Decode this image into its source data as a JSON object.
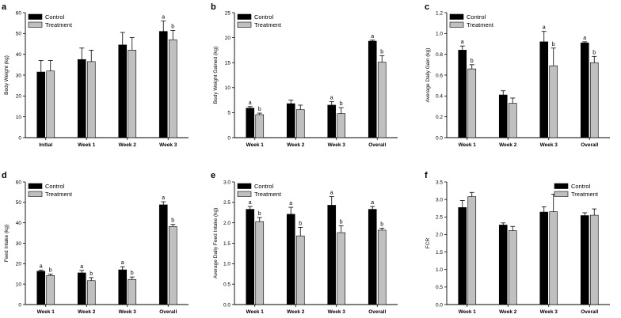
{
  "figure": {
    "legend_labels": [
      "Control",
      "Treatment"
    ],
    "colors": {
      "control": "#000000",
      "treatment": "#c0c0c0"
    }
  },
  "chart_data": [
    {
      "panel": "a",
      "type": "bar",
      "title": "",
      "ylabel": "Body Weight (kg)",
      "xlabel": "",
      "categories": [
        "Initial",
        "Week 1",
        "Week 2",
        "Week 3"
      ],
      "ylim": [
        0,
        60
      ],
      "yticks": [
        0,
        10,
        20,
        30,
        40,
        50,
        60
      ],
      "ytick_labels": [
        "0",
        "10",
        "20",
        "30",
        "40",
        "50",
        "60"
      ],
      "legend_position": "top-left",
      "series": [
        {
          "name": "Control",
          "values": [
            31.5,
            37.5,
            44.5,
            51
          ],
          "errors": [
            5.5,
            5.5,
            6,
            5
          ],
          "labels": [
            "",
            "",
            "",
            "a"
          ]
        },
        {
          "name": "Treatment",
          "values": [
            32,
            36.5,
            42,
            47
          ],
          "errors": [
            5,
            5.5,
            6,
            4.5
          ],
          "labels": [
            "",
            "",
            "",
            "b"
          ]
        }
      ]
    },
    {
      "panel": "b",
      "type": "bar",
      "title": "",
      "ylabel": "Body Weight Gained (kg)",
      "xlabel": "",
      "categories": [
        "Week 1",
        "Week 2",
        "Week 3",
        "Overall"
      ],
      "ylim": [
        0,
        25
      ],
      "yticks": [
        0,
        5,
        10,
        15,
        20,
        25
      ],
      "ytick_labels": [
        "0",
        "5",
        "10",
        "15",
        "20",
        "25"
      ],
      "legend_position": "top-left",
      "series": [
        {
          "name": "Control",
          "values": [
            5.9,
            6.8,
            6.5,
            19.3
          ],
          "errors": [
            0.3,
            0.7,
            0.7,
            0.2
          ],
          "labels": [
            "a",
            "",
            "a",
            "a"
          ]
        },
        {
          "name": "Treatment",
          "values": [
            4.6,
            5.6,
            4.8,
            15.1
          ],
          "errors": [
            0.3,
            0.9,
            1.2,
            1.3
          ],
          "labels": [
            "b",
            "",
            "b",
            "b"
          ]
        }
      ]
    },
    {
      "panel": "c",
      "type": "bar",
      "title": "",
      "ylabel": "Average Daily Gain (kg)",
      "xlabel": "",
      "categories": [
        "Week 1",
        "Week 2",
        "Week 3",
        "Overall"
      ],
      "ylim": [
        0,
        1.2
      ],
      "yticks": [
        0,
        0.2,
        0.4,
        0.6,
        0.8,
        1.0,
        1.2
      ],
      "ytick_labels": [
        "0.0",
        "0.2",
        "0.4",
        "0.6",
        "0.8",
        "1.0",
        "1.2"
      ],
      "legend_position": "top-left",
      "series": [
        {
          "name": "Control",
          "values": [
            0.84,
            0.41,
            0.92,
            0.91
          ],
          "errors": [
            0.04,
            0.04,
            0.1,
            0.01
          ],
          "labels": [
            "a",
            "",
            "a",
            "a"
          ]
        },
        {
          "name": "Treatment",
          "values": [
            0.66,
            0.33,
            0.69,
            0.72
          ],
          "errors": [
            0.04,
            0.05,
            0.17,
            0.06
          ],
          "labels": [
            "b",
            "",
            "b",
            "b"
          ]
        }
      ]
    },
    {
      "panel": "d",
      "type": "bar",
      "title": "",
      "ylabel": "Feed Intake (kg)",
      "xlabel": "",
      "categories": [
        "Week 1",
        "Week 2",
        "Week 3",
        "Overall"
      ],
      "ylim": [
        0,
        60
      ],
      "yticks": [
        0,
        10,
        20,
        30,
        40,
        50,
        60
      ],
      "ytick_labels": [
        "0",
        "10",
        "20",
        "30",
        "40",
        "50",
        "60"
      ],
      "legend_position": "top-left",
      "series": [
        {
          "name": "Control",
          "values": [
            16.3,
            15.5,
            17,
            48.8
          ],
          "errors": [
            0.5,
            1.2,
            1.5,
            1.5
          ],
          "labels": [
            "a",
            "a",
            "a",
            "a"
          ]
        },
        {
          "name": "Treatment",
          "values": [
            14.2,
            11.7,
            12.3,
            38.2
          ],
          "errors": [
            0.7,
            1.5,
            1.2,
            1.0
          ],
          "labels": [
            "b",
            "b",
            "b",
            "b"
          ]
        }
      ]
    },
    {
      "panel": "e",
      "type": "bar",
      "title": "",
      "ylabel": "Average Daily Feed Intake (kg)",
      "xlabel": "",
      "categories": [
        "Week 1",
        "Week 2",
        "Week 3",
        "Overall"
      ],
      "ylim": [
        0,
        3.0
      ],
      "yticks": [
        0,
        0.5,
        1.0,
        1.5,
        2.0,
        2.5,
        3.0
      ],
      "ytick_labels": [
        "0.0",
        "0.5",
        "1.0",
        "1.5",
        "2.0",
        "2.5",
        "3.0"
      ],
      "legend_position": "top-left",
      "series": [
        {
          "name": "Control",
          "values": [
            2.33,
            2.21,
            2.43,
            2.33
          ],
          "errors": [
            0.07,
            0.17,
            0.21,
            0.07
          ],
          "labels": [
            "a",
            "a",
            "a",
            "a"
          ]
        },
        {
          "name": "Treatment",
          "values": [
            2.03,
            1.68,
            1.76,
            1.82
          ],
          "errors": [
            0.1,
            0.21,
            0.17,
            0.05
          ],
          "labels": [
            "b",
            "b",
            "b",
            "b"
          ]
        }
      ]
    },
    {
      "panel": "f",
      "type": "bar",
      "title": "",
      "ylabel": "FCR",
      "xlabel": "",
      "categories": [
        "Week 1",
        "Week 2",
        "Week 3",
        "Overall"
      ],
      "ylim": [
        0,
        3.5
      ],
      "yticks": [
        0,
        0.5,
        1.0,
        1.5,
        2.0,
        2.5,
        3.0,
        3.5
      ],
      "ytick_labels": [
        "0.0",
        "0.5",
        "1.0",
        "1.5",
        "2.0",
        "2.5",
        "3.0",
        "3.5"
      ],
      "legend_position": "top-right",
      "series": [
        {
          "name": "Control",
          "values": [
            2.77,
            2.27,
            2.64,
            2.54
          ],
          "errors": [
            0.2,
            0.06,
            0.15,
            0.08
          ],
          "labels": [
            "",
            "",
            "",
            ""
          ]
        },
        {
          "name": "Treatment",
          "values": [
            3.08,
            2.11,
            2.65,
            2.55
          ],
          "errors": [
            0.12,
            0.12,
            0.5,
            0.18
          ],
          "labels": [
            "",
            "",
            "",
            ""
          ]
        }
      ]
    }
  ]
}
